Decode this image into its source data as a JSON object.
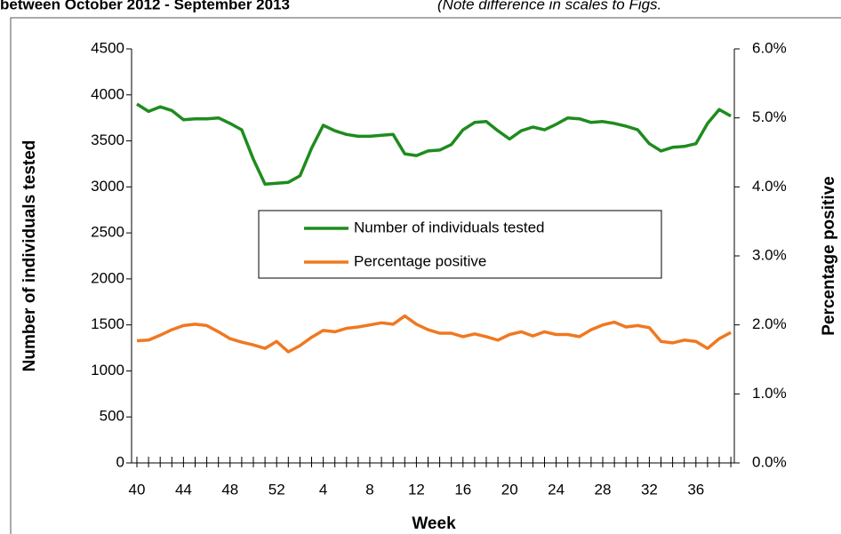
{
  "chart_data": {
    "type": "line",
    "title": "between October 2012 - September 2013",
    "subtitle": "(Note difference in scales to Figs.",
    "xlabel": "Week",
    "ylabel": "Number of individuals tested",
    "y2label": "Percentage positive",
    "categories": [
      "40",
      null,
      null,
      null,
      "44",
      null,
      null,
      null,
      "48",
      null,
      null,
      null,
      "52",
      null,
      null,
      null,
      "4",
      null,
      null,
      null,
      "8",
      null,
      null,
      null,
      "12",
      null,
      null,
      null,
      "16",
      null,
      null,
      null,
      "20",
      null,
      null,
      null,
      "24",
      null,
      null,
      null,
      "28",
      null,
      null,
      null,
      "32",
      null,
      null,
      null,
      "36",
      null,
      null,
      null
    ],
    "ylim": [
      0,
      4500
    ],
    "yticks": [
      0,
      500,
      1000,
      1500,
      2000,
      2500,
      3000,
      3500,
      4000,
      4500
    ],
    "y2lim": [
      0,
      6
    ],
    "y2ticks": [
      {
        "value": 0,
        "label": "0.0%"
      },
      {
        "value": 1,
        "label": "1.0%"
      },
      {
        "value": 2,
        "label": "2.0%"
      },
      {
        "value": 3,
        "label": "3.0%"
      },
      {
        "value": 4,
        "label": "4.0%"
      },
      {
        "value": 5,
        "label": "5.0%"
      },
      {
        "value": 6,
        "label": "6.0%"
      }
    ],
    "legend": "center",
    "series": [
      {
        "name": "Number of individuals tested",
        "color": "#1e8c1e",
        "values": [
          3900,
          3820,
          3870,
          3830,
          3730,
          3740,
          3740,
          3750,
          3690,
          3620,
          3300,
          3030,
          3040,
          3050,
          3120,
          3420,
          3670,
          3610,
          3570,
          3550,
          3550,
          3560,
          3570,
          3360,
          3340,
          3390,
          3400,
          3460,
          3620,
          3700,
          3710,
          3610,
          3520,
          3610,
          3650,
          3620,
          3680,
          3750,
          3740,
          3700,
          3710,
          3690,
          3660,
          3620,
          3470,
          3390,
          3430,
          3440,
          3470,
          3690,
          3840,
          3770
        ]
      },
      {
        "name": "Percentage positive",
        "color": "#f07820",
        "axis": "y2",
        "values": [
          1.77,
          1.78,
          1.85,
          1.93,
          1.99,
          2.01,
          1.99,
          1.9,
          1.8,
          1.75,
          1.71,
          1.66,
          1.76,
          1.61,
          1.7,
          1.82,
          1.92,
          1.9,
          1.95,
          1.97,
          2.0,
          2.03,
          2.01,
          2.13,
          2.01,
          1.93,
          1.88,
          1.88,
          1.83,
          1.87,
          1.83,
          1.78,
          1.86,
          1.9,
          1.84,
          1.9,
          1.86,
          1.86,
          1.83,
          1.93,
          2.0,
          2.04,
          1.97,
          1.99,
          1.96,
          1.76,
          1.74,
          1.78,
          1.76,
          1.66,
          1.8,
          1.89
        ]
      }
    ]
  }
}
